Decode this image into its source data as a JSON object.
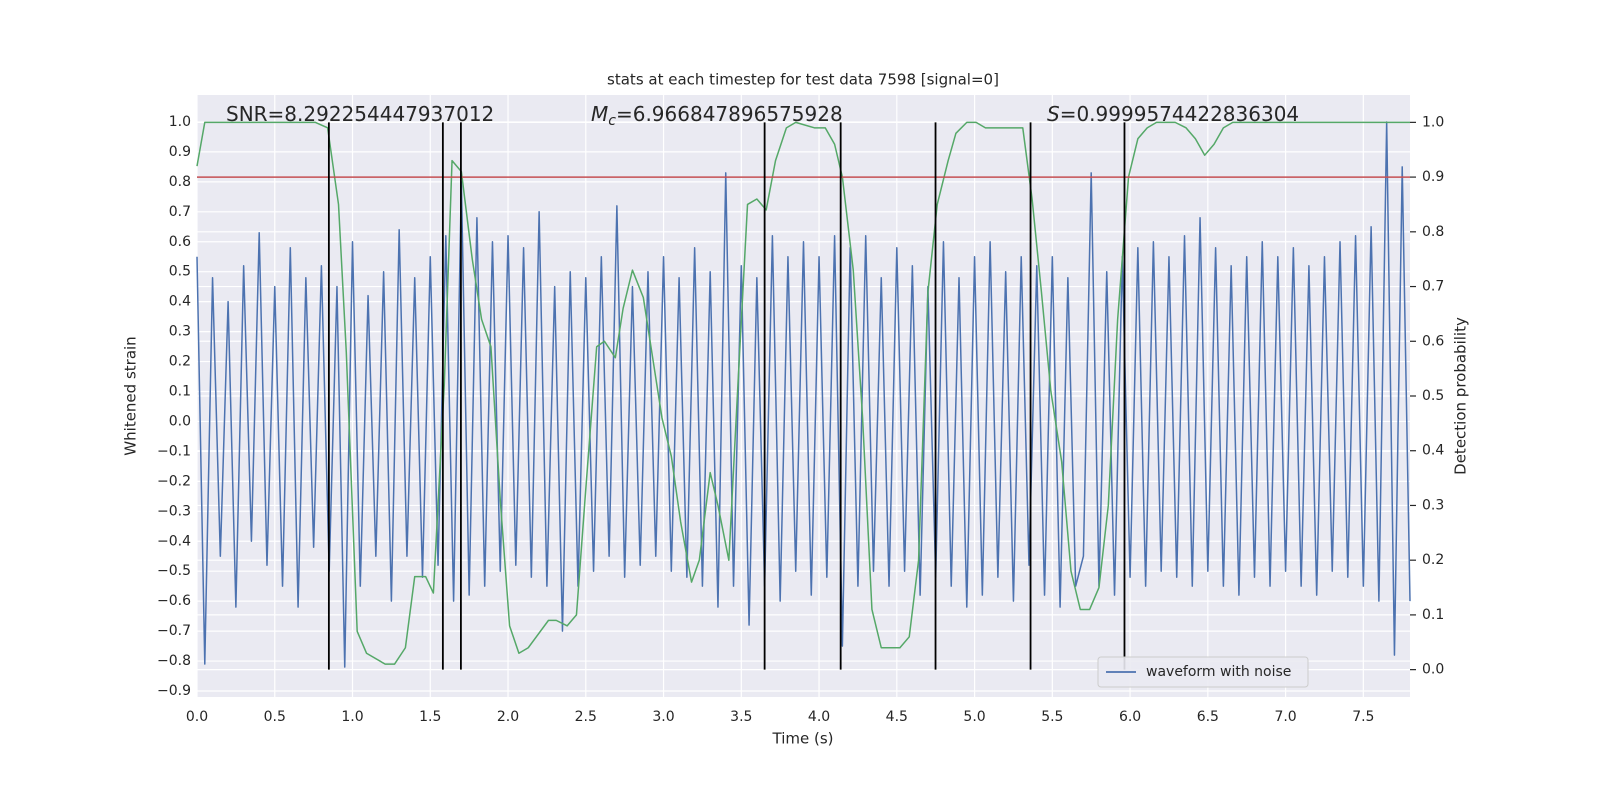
{
  "chart_data": {
    "type": "line",
    "title": "stats at each timestep for test data 7598 [signal=0]",
    "xlabel": "Time (s)",
    "ylabel": "Whitened strain",
    "y2label": "Detection probability",
    "annotations": [
      {
        "text": "SNR=8.292254447937012"
      },
      {
        "symbol": "M",
        "subscript": "c",
        "text": "=6.966847896575928"
      },
      {
        "symbol": "S",
        "text": "=0.9999574422836304"
      }
    ],
    "xlim": [
      0,
      7.8
    ],
    "ylim": [
      -0.92,
      1.09
    ],
    "y2lim": [
      -0.05,
      1.05
    ],
    "xticks": [
      {
        "value": 0,
        "label": "0.0"
      },
      {
        "value": 0.5,
        "label": "0.5"
      },
      {
        "value": 1,
        "label": "1.0"
      },
      {
        "value": 1.5,
        "label": "1.5"
      },
      {
        "value": 2,
        "label": "2.0"
      },
      {
        "value": 2.5,
        "label": "2.5"
      },
      {
        "value": 3,
        "label": "3.0"
      },
      {
        "value": 3.5,
        "label": "3.5"
      },
      {
        "value": 4,
        "label": "4.0"
      },
      {
        "value": 4.5,
        "label": "4.5"
      },
      {
        "value": 5,
        "label": "5.0"
      },
      {
        "value": 5.5,
        "label": "5.5"
      },
      {
        "value": 6,
        "label": "6.0"
      },
      {
        "value": 6.5,
        "label": "6.5"
      },
      {
        "value": 7,
        "label": "7.0"
      },
      {
        "value": 7.5,
        "label": "7.5"
      }
    ],
    "yticks": [
      {
        "value": -0.9,
        "label": "−0.9"
      },
      {
        "value": -0.8,
        "label": "−0.8"
      },
      {
        "value": -0.7,
        "label": "−0.7"
      },
      {
        "value": -0.6,
        "label": "−0.6"
      },
      {
        "value": -0.5,
        "label": "−0.5"
      },
      {
        "value": -0.4,
        "label": "−0.4"
      },
      {
        "value": -0.3,
        "label": "−0.3"
      },
      {
        "value": -0.2,
        "label": "−0.2"
      },
      {
        "value": -0.1,
        "label": "−0.1"
      },
      {
        "value": 0,
        "label": "0.0"
      },
      {
        "value": 0.1,
        "label": "0.1"
      },
      {
        "value": 0.2,
        "label": "0.2"
      },
      {
        "value": 0.3,
        "label": "0.3"
      },
      {
        "value": 0.4,
        "label": "0.4"
      },
      {
        "value": 0.5,
        "label": "0.5"
      },
      {
        "value": 0.6,
        "label": "0.6"
      },
      {
        "value": 0.7,
        "label": "0.7"
      },
      {
        "value": 0.8,
        "label": "0.8"
      },
      {
        "value": 0.9,
        "label": "0.9"
      },
      {
        "value": 1,
        "label": "1.0"
      }
    ],
    "y2ticks": [
      {
        "value": 0,
        "label": "0.0"
      },
      {
        "value": 0.1,
        "label": "0.1"
      },
      {
        "value": 0.2,
        "label": "0.2"
      },
      {
        "value": 0.3,
        "label": "0.3"
      },
      {
        "value": 0.4,
        "label": "0.4"
      },
      {
        "value": 0.5,
        "label": "0.5"
      },
      {
        "value": 0.6,
        "label": "0.6"
      },
      {
        "value": 0.7,
        "label": "0.7"
      },
      {
        "value": 0.8,
        "label": "0.8"
      },
      {
        "value": 0.9,
        "label": "0.9"
      },
      {
        "value": 1,
        "label": "1.0"
      }
    ],
    "grid": true,
    "legend": "lower right",
    "series": [
      {
        "name": "waveform with noise",
        "color": "#4c72b0",
        "x": [
          0,
          0.05,
          0.1,
          0.15,
          0.2,
          0.25,
          0.3,
          0.35,
          0.4,
          0.45,
          0.5,
          0.55,
          0.6,
          0.65,
          0.7,
          0.75,
          0.8,
          0.85,
          0.9,
          0.95,
          1,
          1.05,
          1.1,
          1.15,
          1.2,
          1.25,
          1.3,
          1.35,
          1.4,
          1.45,
          1.5,
          1.55,
          1.6,
          1.65,
          1.7,
          1.75,
          1.8,
          1.85,
          1.9,
          1.95,
          2,
          2.05,
          2.1,
          2.15,
          2.2,
          2.25,
          2.3,
          2.35,
          2.4,
          2.45,
          2.5,
          2.55,
          2.6,
          2.65,
          2.7,
          2.75,
          2.8,
          2.85,
          2.9,
          2.95,
          3,
          3.05,
          3.1,
          3.15,
          3.2,
          3.25,
          3.3,
          3.35,
          3.4,
          3.45,
          3.5,
          3.55,
          3.6,
          3.65,
          3.7,
          3.75,
          3.8,
          3.85,
          3.9,
          3.95,
          4,
          4.05,
          4.1,
          4.15,
          4.2,
          4.25,
          4.3,
          4.35,
          4.4,
          4.45,
          4.5,
          4.55,
          4.6,
          4.65,
          4.7,
          4.75,
          4.8,
          4.85,
          4.9,
          4.95,
          5,
          5.05,
          5.1,
          5.15,
          5.2,
          5.25,
          5.3,
          5.35,
          5.4,
          5.45,
          5.5,
          5.55,
          5.6,
          5.65,
          5.7,
          5.75,
          5.8,
          5.85,
          5.9,
          5.95,
          6,
          6.05,
          6.1,
          6.15,
          6.2,
          6.25,
          6.3,
          6.35,
          6.4,
          6.45,
          6.5,
          6.55,
          6.6,
          6.65,
          6.7,
          6.75,
          6.8,
          6.85,
          6.9,
          6.95,
          7,
          7.05,
          7.1,
          7.15,
          7.2,
          7.25,
          7.3,
          7.35,
          7.4,
          7.45,
          7.5,
          7.55,
          7.6,
          7.65,
          7.7,
          7.75,
          7.8
        ],
        "values": [
          0.55,
          -0.81,
          0.48,
          -0.45,
          0.4,
          -0.62,
          0.52,
          -0.4,
          0.63,
          -0.48,
          0.45,
          -0.55,
          0.58,
          -0.62,
          0.48,
          -0.42,
          0.52,
          -0.5,
          0.45,
          -0.82,
          0.6,
          -0.55,
          0.42,
          -0.45,
          0.5,
          -0.6,
          0.64,
          -0.45,
          0.48,
          -0.52,
          0.55,
          -0.48,
          0.62,
          -0.6,
          0.8,
          -0.58,
          0.68,
          -0.55,
          0.6,
          -0.5,
          0.62,
          -0.48,
          0.58,
          -0.52,
          0.7,
          -0.55,
          0.45,
          -0.7,
          0.5,
          -0.55,
          0.48,
          -0.5,
          0.55,
          -0.45,
          0.72,
          -0.52,
          0.45,
          -0.48,
          0.5,
          -0.45,
          0.55,
          -0.5,
          0.48,
          -0.52,
          0.58,
          -0.55,
          0.5,
          -0.62,
          0.83,
          -0.55,
          0.52,
          -0.68,
          0.48,
          -0.55,
          0.62,
          -0.6,
          0.55,
          -0.5,
          0.6,
          -0.58,
          0.55,
          -0.52,
          0.62,
          -0.75,
          0.58,
          -0.55,
          0.62,
          -0.5,
          0.48,
          -0.55,
          0.58,
          -0.5,
          0.52,
          -0.58,
          0.45,
          -0.52,
          0.6,
          -0.55,
          0.48,
          -0.62,
          0.55,
          -0.58,
          0.6,
          -0.52,
          0.5,
          -0.6,
          0.55,
          -0.48,
          0.52,
          -0.58,
          0.55,
          -0.62,
          0.48,
          -0.55,
          -0.45,
          0.83,
          -0.55,
          0.5,
          -0.58,
          0.55,
          -0.52,
          0.58,
          -0.55,
          0.6,
          -0.5,
          0.55,
          -0.52,
          0.62,
          -0.55,
          0.68,
          -0.5,
          0.58,
          -0.55,
          0.52,
          -0.58,
          0.55,
          -0.52,
          0.6,
          -0.55,
          0.55,
          -0.5,
          0.58,
          -0.55,
          0.52,
          -0.58,
          0.55,
          -0.5,
          0.6,
          -0.52,
          0.62,
          -0.55,
          0.65,
          -0.6,
          1.0,
          -0.78,
          0.85,
          -0.6
        ]
      },
      {
        "color": "#55a868",
        "axis": "y2",
        "x": [
          0,
          0.05,
          0.76,
          0.84,
          0.91,
          0.96,
          1.03,
          1.09,
          1.21,
          1.27,
          1.34,
          1.4,
          1.47,
          1.52,
          1.59,
          1.64,
          1.7,
          1.77,
          1.83,
          1.89,
          1.95,
          2.01,
          2.07,
          2.13,
          2.26,
          2.31,
          2.38,
          2.44,
          2.5,
          2.57,
          2.62,
          2.69,
          2.74,
          2.8,
          2.87,
          2.93,
          2.99,
          3.05,
          3.11,
          3.18,
          3.23,
          3.3,
          3.35,
          3.42,
          3.48,
          3.54,
          3.6,
          3.66,
          3.72,
          3.79,
          3.85,
          3.97,
          4.04,
          4.1,
          4.15,
          4.22,
          4.28,
          4.34,
          4.4,
          4.46,
          4.52,
          4.58,
          4.64,
          4.7,
          4.76,
          4.83,
          4.88,
          4.95,
          5.01,
          5.07,
          5.13,
          5.19,
          5.25,
          5.31,
          5.37,
          5.43,
          5.49,
          5.56,
          5.62,
          5.68,
          5.74,
          5.8,
          5.86,
          5.92,
          5.99,
          6.05,
          6.11,
          6.17,
          6.29,
          6.36,
          6.42,
          6.48,
          6.54,
          6.6,
          6.66,
          7.8
        ],
        "values": [
          0.92,
          1.0,
          1.0,
          0.99,
          0.85,
          0.58,
          0.07,
          0.03,
          0.01,
          0.01,
          0.04,
          0.17,
          0.17,
          0.14,
          0.52,
          0.93,
          0.91,
          0.75,
          0.64,
          0.59,
          0.31,
          0.08,
          0.03,
          0.04,
          0.09,
          0.09,
          0.08,
          0.1,
          0.33,
          0.59,
          0.6,
          0.57,
          0.66,
          0.73,
          0.68,
          0.57,
          0.46,
          0.39,
          0.27,
          0.16,
          0.2,
          0.36,
          0.3,
          0.2,
          0.53,
          0.85,
          0.86,
          0.84,
          0.93,
          0.99,
          1.0,
          0.99,
          0.99,
          0.96,
          0.9,
          0.73,
          0.46,
          0.11,
          0.04,
          0.04,
          0.04,
          0.06,
          0.2,
          0.69,
          0.85,
          0.93,
          0.98,
          1.0,
          1.0,
          0.99,
          0.99,
          0.99,
          0.99,
          0.99,
          0.86,
          0.69,
          0.51,
          0.38,
          0.18,
          0.11,
          0.11,
          0.15,
          0.3,
          0.64,
          0.9,
          0.97,
          0.99,
          1.0,
          1.0,
          0.99,
          0.97,
          0.94,
          0.96,
          0.99,
          1.0,
          1.0
        ]
      }
    ],
    "threshold": {
      "value": 0.9,
      "axis": "y2",
      "color": "#c44e52"
    },
    "event_lines": {
      "x": [
        0.848,
        1.581,
        1.697,
        3.65,
        4.139,
        4.749,
        5.36,
        5.964
      ],
      "ymin": 0,
      "ymax": 1,
      "axis": "y2",
      "color": "#000000"
    }
  }
}
